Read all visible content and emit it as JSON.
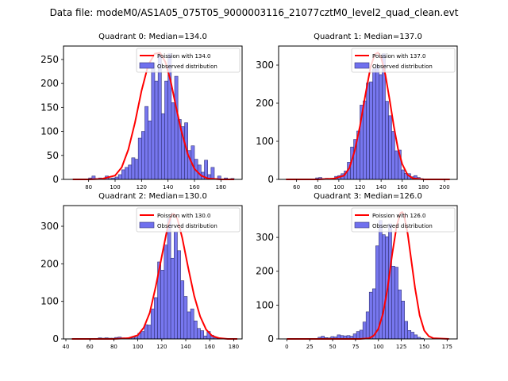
{
  "suptitle": "Data file: modeM0/AS1A05_075T05_9000003116_21077cztM0_level2_quad_clean.evt",
  "colors": {
    "bar_fill": "#7070ee",
    "bar_edge": "#333377",
    "poisson_line": "#ff0000"
  },
  "chart_data": [
    {
      "type": "bar",
      "title": "Quadrant 0: Median=134.0",
      "median": 134.0,
      "legend": [
        "Poission with 134.0",
        "Observed distribution"
      ],
      "legend_position": "top-right",
      "xlim": [
        61,
        196
      ],
      "ylim": [
        0,
        278
      ],
      "xticks": [
        80,
        100,
        120,
        140,
        160,
        180
      ],
      "yticks": [
        0,
        50,
        100,
        150,
        200,
        250
      ],
      "bin_width": 2.5,
      "bin_start": 80,
      "values": [
        3,
        7,
        2,
        3,
        2,
        7,
        2,
        3,
        5,
        10,
        20,
        25,
        30,
        45,
        42,
        86,
        100,
        152,
        122,
        243,
        205,
        262,
        137,
        205,
        262,
        160,
        215,
        125,
        110,
        118,
        60,
        70,
        42,
        30,
        15,
        40,
        10,
        25,
        2,
        7,
        1,
        3,
        1,
        2
      ],
      "poisson_x": [
        68,
        80,
        90,
        100,
        105,
        110,
        115,
        120,
        125,
        130,
        134,
        138,
        142,
        146,
        150,
        155,
        160,
        165,
        170,
        180,
        190
      ],
      "poisson_y": [
        0,
        0,
        1,
        8,
        25,
        62,
        118,
        185,
        238,
        262,
        264,
        245,
        205,
        152,
        102,
        52,
        22,
        8,
        2,
        0,
        0
      ]
    },
    {
      "type": "bar",
      "title": "Quadrant 1: Median=137.0",
      "median": 137.0,
      "legend": [
        "Poission with 137.0",
        "Observed distribution"
      ],
      "legend_position": "top-right",
      "xlim": [
        43,
        212
      ],
      "ylim": [
        0,
        350
      ],
      "xticks": [
        60,
        80,
        100,
        120,
        140,
        160,
        180,
        200
      ],
      "yticks": [
        0,
        100,
        200,
        300
      ],
      "bin_width": 3,
      "bin_start": 78,
      "values": [
        4,
        5,
        2,
        3,
        1,
        2,
        8,
        10,
        15,
        22,
        45,
        85,
        105,
        127,
        195,
        206,
        253,
        256,
        290,
        300,
        275,
        330,
        205,
        167,
        126,
        75,
        77,
        25,
        16,
        15,
        7,
        10,
        5,
        2,
        1
      ],
      "poisson_x": [
        50,
        80,
        95,
        105,
        110,
        115,
        120,
        125,
        130,
        134,
        137,
        140,
        144,
        148,
        152,
        156,
        160,
        165,
        170,
        180,
        205
      ],
      "poisson_y": [
        0,
        0,
        2,
        10,
        30,
        75,
        140,
        220,
        295,
        328,
        333,
        320,
        275,
        210,
        140,
        80,
        40,
        12,
        3,
        0,
        0
      ]
    },
    {
      "type": "bar",
      "title": "Quadrant 2: Median=130.0",
      "median": 130.0,
      "legend": [
        "Poission with 130.0",
        "Observed distribution"
      ],
      "legend_position": "top-right",
      "xlim": [
        38,
        187
      ],
      "ylim": [
        0,
        355
      ],
      "xticks": [
        40,
        60,
        80,
        100,
        120,
        140,
        160,
        180
      ],
      "yticks": [
        0,
        100,
        200,
        300
      ],
      "bin_width": 2.75,
      "bin_start": 67,
      "values": [
        3,
        2,
        3,
        2,
        2,
        4,
        5,
        3,
        2,
        1,
        3,
        5,
        15,
        20,
        38,
        37,
        80,
        110,
        205,
        183,
        250,
        320,
        215,
        285,
        235,
        155,
        113,
        72,
        80,
        48,
        28,
        22,
        8,
        20,
        10,
        3,
        2
      ],
      "poisson_x": [
        45,
        80,
        92,
        100,
        105,
        110,
        115,
        120,
        125,
        128,
        130,
        133,
        137,
        142,
        147,
        152,
        157,
        162,
        168,
        175,
        183
      ],
      "poisson_y": [
        0,
        0,
        2,
        10,
        30,
        70,
        140,
        220,
        300,
        330,
        333,
        320,
        270,
        190,
        115,
        60,
        25,
        8,
        2,
        0,
        0
      ]
    },
    {
      "type": "bar",
      "title": "Quadrant 3: Median=126.0",
      "median": 126.0,
      "legend": [
        "Poission with 126.0",
        "Observed distribution"
      ],
      "legend_position": "top-right",
      "xlim": [
        -9,
        186
      ],
      "ylim": [
        0,
        394
      ],
      "xticks": [
        0,
        25,
        50,
        75,
        100,
        125,
        150,
        175
      ],
      "yticks": [
        0,
        100,
        200,
        300
      ],
      "bin_width": 3.5,
      "bin_start": 34,
      "values": [
        5,
        8,
        4,
        3,
        7,
        6,
        12,
        10,
        9,
        10,
        8,
        15,
        22,
        26,
        50,
        80,
        138,
        148,
        275,
        350,
        308,
        302,
        340,
        215,
        212,
        145,
        112,
        52,
        25,
        20,
        12,
        5,
        2
      ],
      "poisson_x": [
        0,
        50,
        80,
        90,
        95,
        100,
        105,
        110,
        115,
        120,
        124,
        126,
        128,
        132,
        136,
        140,
        145,
        150,
        155,
        160,
        177
      ],
      "poisson_y": [
        0,
        0,
        0,
        2,
        10,
        30,
        75,
        150,
        250,
        335,
        372,
        375,
        365,
        310,
        230,
        150,
        70,
        25,
        8,
        2,
        0
      ]
    }
  ]
}
